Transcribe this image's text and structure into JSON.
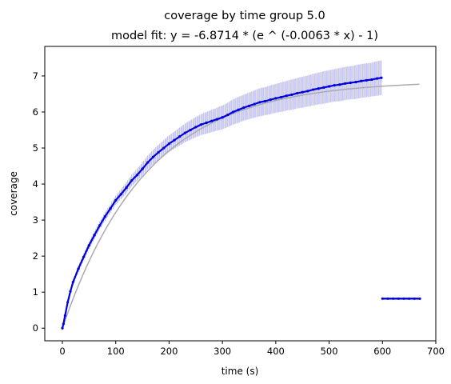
{
  "chart_data": {
    "type": "line",
    "title": "coverage by time group 5.0",
    "subtitle": "model fit: y = -6.8714 * (e ^ (-0.0063 * x) - 1)",
    "xlabel": "time (s)",
    "ylabel": "coverage",
    "xlim": [
      -33,
      700
    ],
    "ylim": [
      -0.35,
      7.82
    ],
    "x_ticks": [
      0,
      100,
      200,
      300,
      400,
      500,
      600,
      700
    ],
    "y_ticks": [
      0,
      1,
      2,
      3,
      4,
      5,
      6,
      7
    ],
    "grid": false,
    "legend": "none",
    "model_fit": {
      "a": 6.8714,
      "b": 0.0063,
      "x_range": [
        0,
        670
      ],
      "color": "#aaaaaa"
    },
    "series": [
      {
        "color": "#0000dd",
        "error_color": "#8080ee",
        "x": [
          0,
          2,
          5,
          10,
          15,
          20,
          30,
          40,
          50,
          60,
          70,
          80,
          90,
          100,
          110,
          120,
          130,
          140,
          150,
          160,
          170,
          180,
          190,
          200,
          210,
          220,
          230,
          240,
          250,
          260,
          270,
          280,
          290,
          300,
          310,
          320,
          330,
          340,
          350,
          360,
          370,
          380,
          390,
          400,
          410,
          420,
          430,
          440,
          450,
          460,
          470,
          480,
          490,
          500,
          510,
          520,
          530,
          540,
          550,
          560,
          570,
          580,
          590,
          598
        ],
        "y": [
          0.0,
          0.12,
          0.35,
          0.72,
          1.02,
          1.28,
          1.65,
          1.98,
          2.3,
          2.58,
          2.85,
          3.1,
          3.32,
          3.55,
          3.72,
          3.9,
          4.1,
          4.25,
          4.42,
          4.6,
          4.75,
          4.88,
          5.0,
          5.12,
          5.22,
          5.32,
          5.42,
          5.5,
          5.58,
          5.65,
          5.7,
          5.75,
          5.8,
          5.85,
          5.92,
          6.0,
          6.06,
          6.12,
          6.17,
          6.22,
          6.27,
          6.3,
          6.34,
          6.38,
          6.41,
          6.45,
          6.48,
          6.52,
          6.55,
          6.58,
          6.62,
          6.65,
          6.68,
          6.71,
          6.74,
          6.76,
          6.79,
          6.81,
          6.83,
          6.86,
          6.88,
          6.9,
          6.93,
          6.95
        ],
        "err": [
          0.0,
          0.02,
          0.04,
          0.06,
          0.07,
          0.08,
          0.09,
          0.1,
          0.1,
          0.11,
          0.11,
          0.12,
          0.12,
          0.13,
          0.14,
          0.15,
          0.16,
          0.17,
          0.18,
          0.19,
          0.2,
          0.21,
          0.22,
          0.23,
          0.24,
          0.25,
          0.26,
          0.27,
          0.28,
          0.29,
          0.3,
          0.31,
          0.32,
          0.33,
          0.34,
          0.35,
          0.36,
          0.36,
          0.37,
          0.38,
          0.39,
          0.39,
          0.4,
          0.4,
          0.41,
          0.41,
          0.42,
          0.42,
          0.43,
          0.43,
          0.44,
          0.44,
          0.45,
          0.45,
          0.45,
          0.46,
          0.46,
          0.46,
          0.47,
          0.47,
          0.47,
          0.47,
          0.48,
          0.48
        ]
      },
      {
        "color": "#0000dd",
        "x": [
          600,
          610,
          620,
          630,
          640,
          650,
          660,
          670
        ],
        "y": [
          0.82,
          0.82,
          0.82,
          0.82,
          0.82,
          0.82,
          0.82,
          0.82
        ]
      }
    ]
  }
}
